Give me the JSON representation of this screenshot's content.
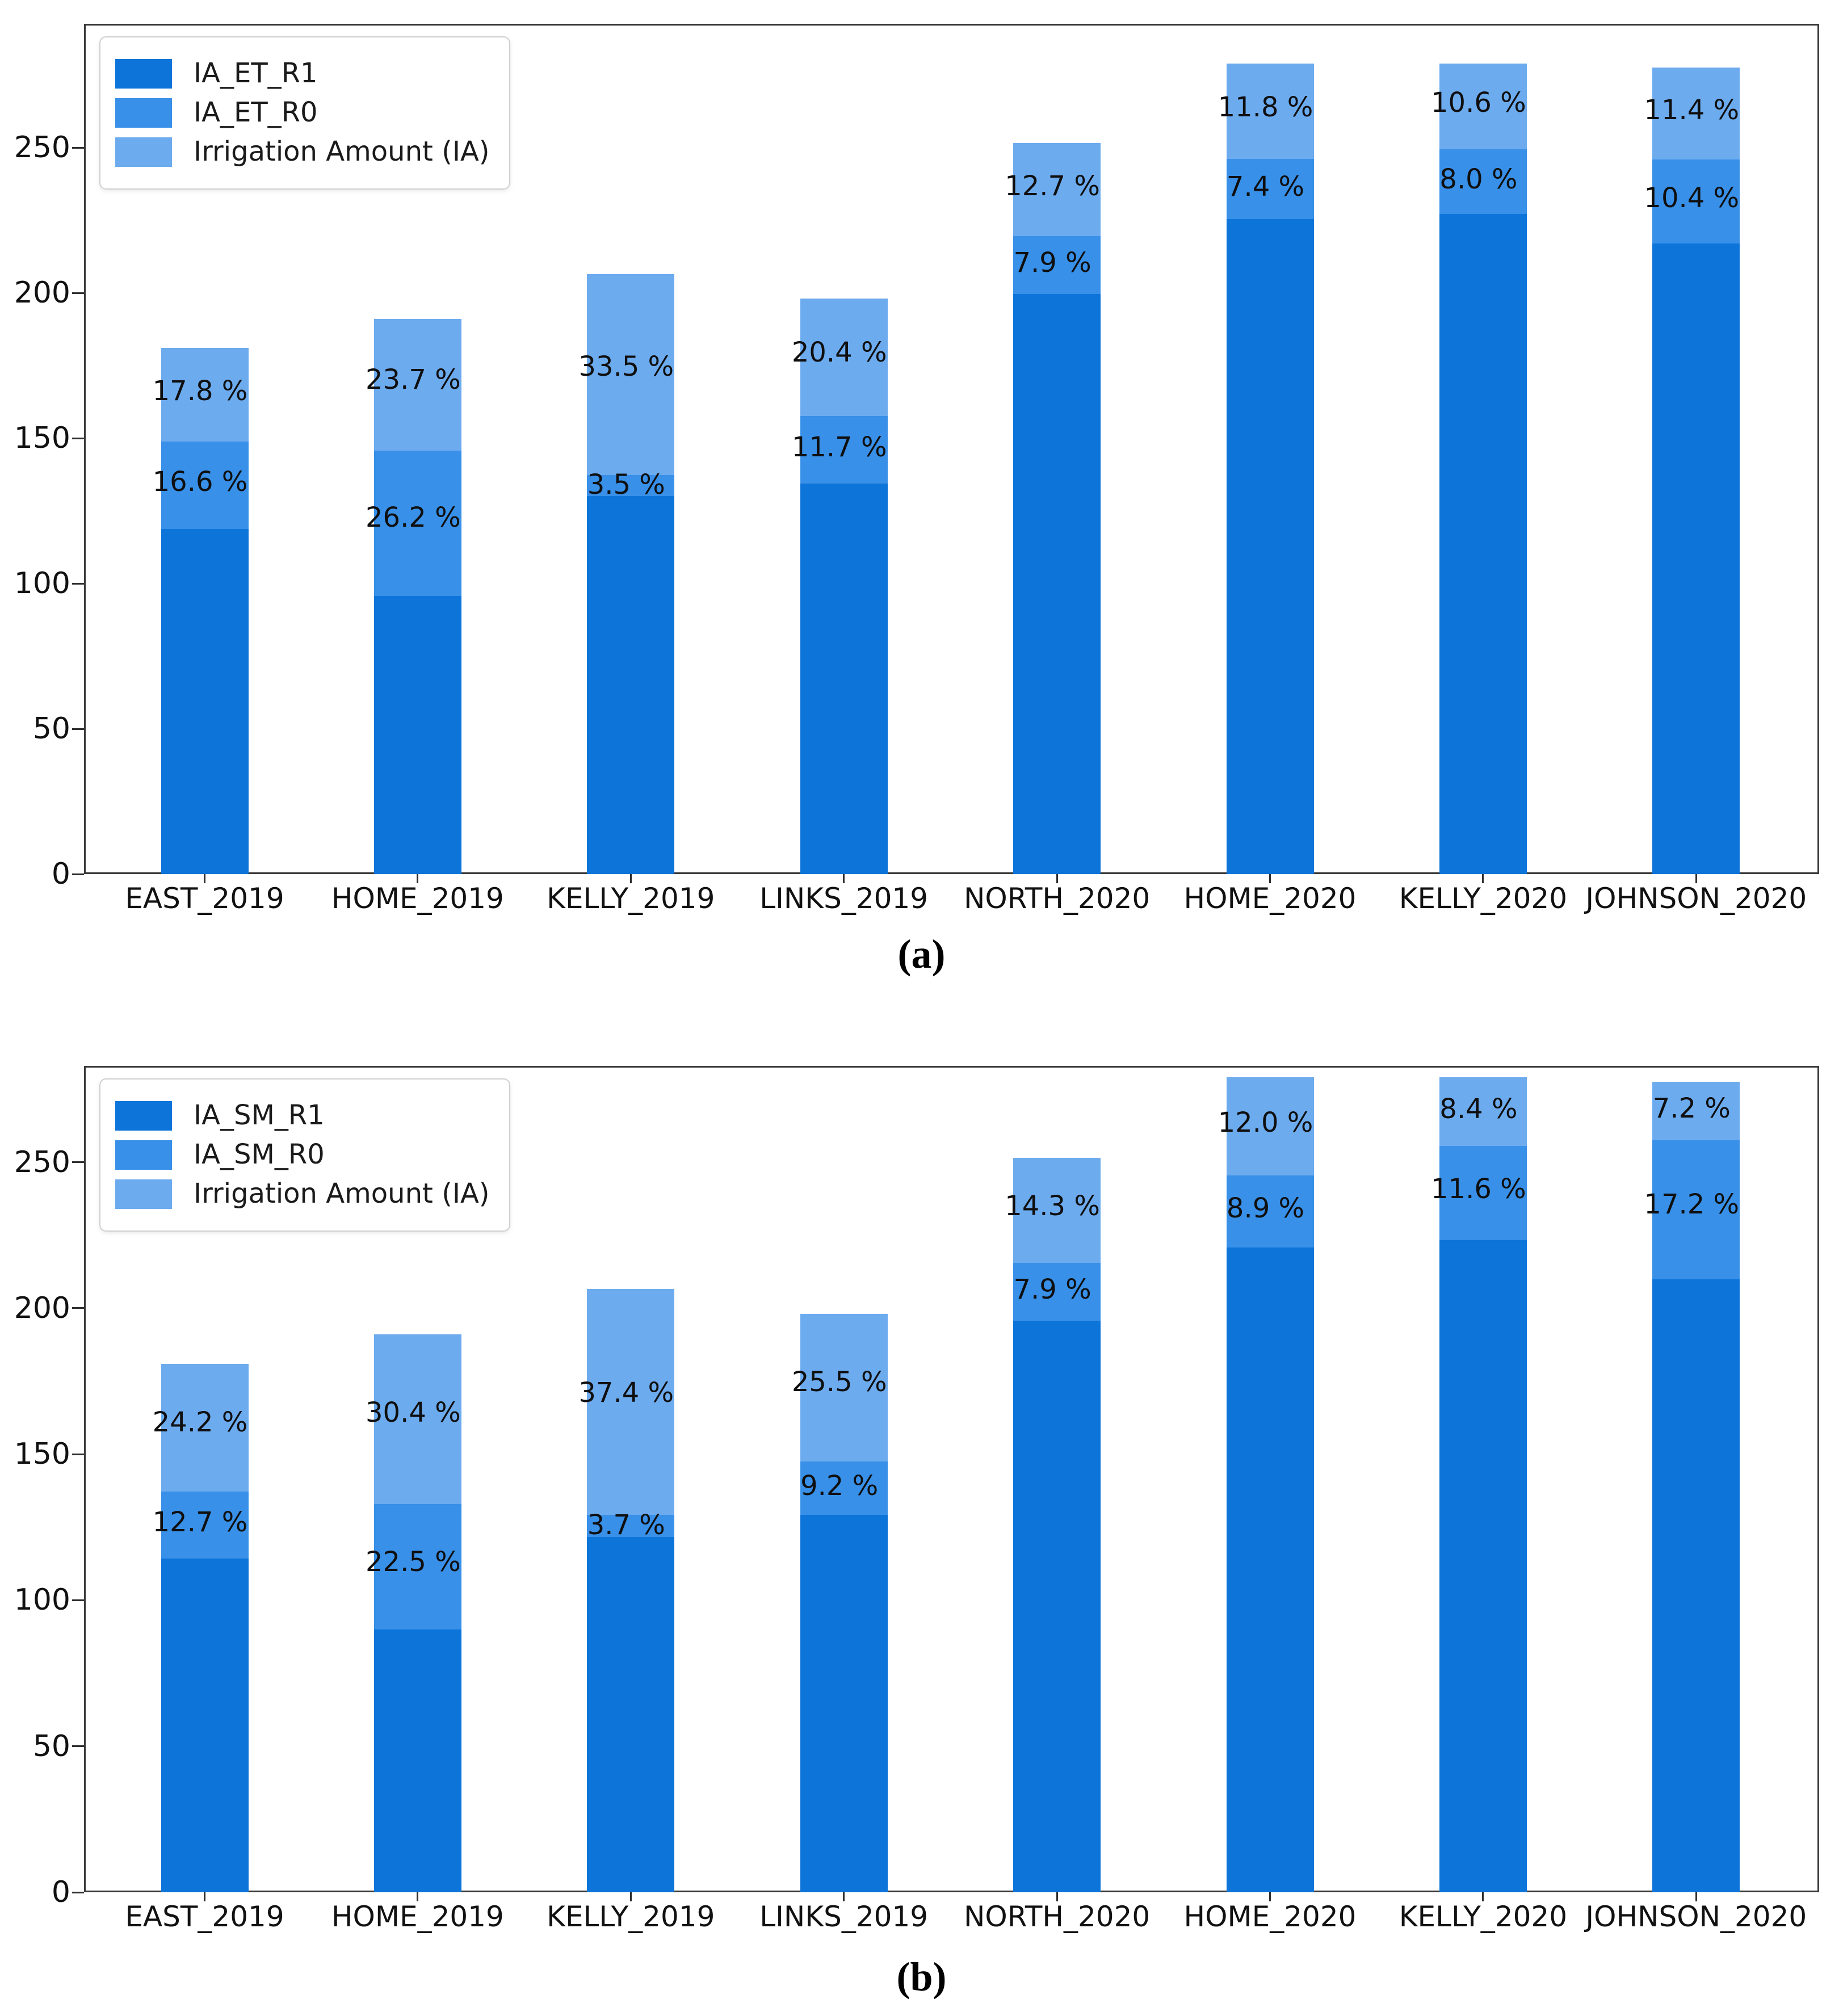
{
  "colors": {
    "r1_dark": "#0d74d9",
    "r0_medium": "#3890e8",
    "ia_light": "#6dabef",
    "axis": "#3a3a3a",
    "text": "#111111"
  },
  "figure": {
    "caption_a": "(a)",
    "caption_b": "(b)"
  },
  "chart_data": [
    {
      "type": "bar",
      "stacked": true,
      "panel": "a",
      "title": "",
      "xlabel": "",
      "ylabel": "",
      "grid": false,
      "legend_position": "upper left",
      "legend": [
        "IA_ET_R1",
        "IA_ET_R0",
        "Irrigation Amount (IA)"
      ],
      "categories": [
        "EAST_2019",
        "HOME_2019",
        "KELLY_2019",
        "LINKS_2019",
        "NORTH_2020",
        "HOME_2020",
        "KELLY_2020",
        "JOHNSON_2020"
      ],
      "y_ticks": [
        0,
        50,
        100,
        150,
        200,
        250
      ],
      "ylim": [
        0,
        292
      ],
      "ia_totals": [
        181,
        191,
        206.5,
        198,
        251.5,
        279,
        279,
        277.5
      ],
      "pct_labels_top": [
        "17.8 %",
        "23.7 %",
        "33.5 %",
        "20.4 %",
        "12.7 %",
        "11.8 %",
        "10.6 %",
        "11.4 %"
      ],
      "pct_top": [
        17.8,
        23.7,
        33.5,
        20.4,
        12.7,
        11.8,
        10.6,
        11.4
      ],
      "pct_labels_mid": [
        "16.6 %",
        "26.2 %",
        "3.5 %",
        "11.7 %",
        "7.9 %",
        "7.4 %",
        "8.0 %",
        "10.4 %"
      ],
      "pct_mid": [
        16.6,
        26.2,
        3.5,
        11.7,
        7.9,
        7.4,
        8.0,
        10.4
      ],
      "series_note": "bottom segment = IA_ET_R1, middle = IA_ET_R0 extra, top = remaining Irrigation Amount; middle/top heights are pct of IA total"
    },
    {
      "type": "bar",
      "stacked": true,
      "panel": "b",
      "title": "",
      "xlabel": "",
      "ylabel": "",
      "grid": false,
      "legend_position": "upper left",
      "legend": [
        "IA_SM_R1",
        "IA_SM_R0",
        "Irrigation Amount (IA)"
      ],
      "categories": [
        "EAST_2019",
        "HOME_2019",
        "KELLY_2019",
        "LINKS_2019",
        "NORTH_2020",
        "HOME_2020",
        "KELLY_2020",
        "JOHNSON_2020"
      ],
      "y_ticks": [
        0,
        50,
        100,
        150,
        200,
        250
      ],
      "ylim": [
        0,
        283
      ],
      "ia_totals": [
        181,
        191,
        206.5,
        198,
        251.5,
        279,
        279,
        277.5
      ],
      "pct_labels_top": [
        "24.2 %",
        "30.4 %",
        "37.4 %",
        "25.5 %",
        "14.3 %",
        "12.0 %",
        "8.4 %",
        "7.2 %"
      ],
      "pct_top": [
        24.2,
        30.4,
        37.4,
        25.5,
        14.3,
        12.0,
        8.4,
        7.2
      ],
      "pct_labels_mid": [
        "12.7 %",
        "22.5 %",
        "3.7 %",
        "9.2 %",
        "7.9 %",
        "8.9 %",
        "11.6 %",
        "17.2 %"
      ],
      "pct_mid": [
        12.7,
        22.5,
        3.7,
        9.2,
        7.9,
        8.9,
        11.6,
        17.2
      ],
      "series_note": "bottom segment = IA_SM_R1, middle = IA_SM_R0 extra, top = remaining Irrigation Amount; middle/top heights are pct of IA total"
    }
  ]
}
